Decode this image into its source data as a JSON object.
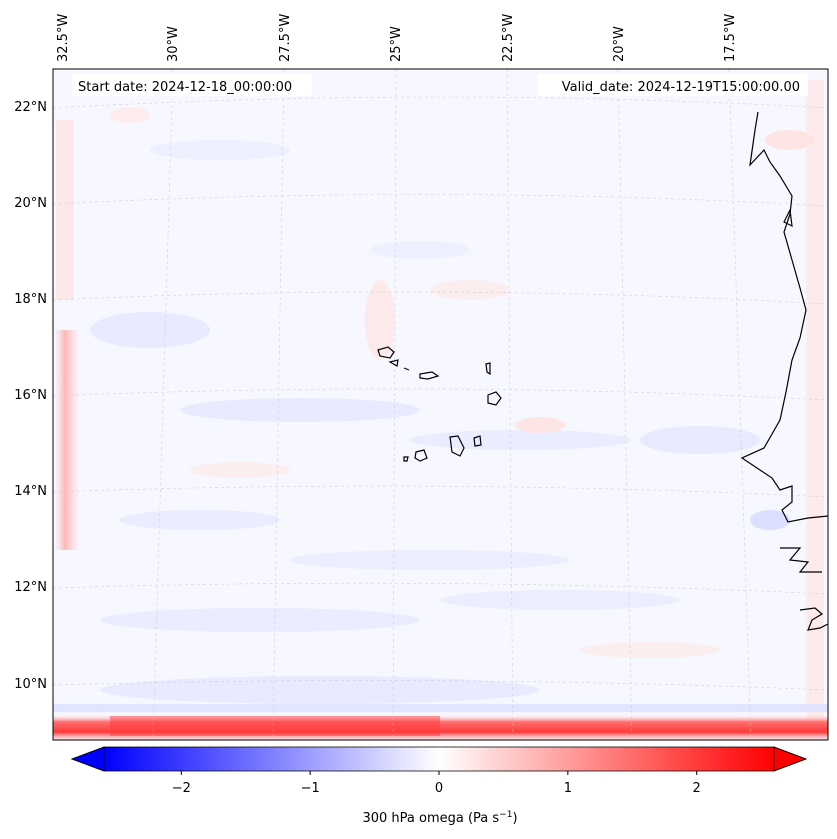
{
  "header": {
    "start_date": "Start date: 2024-12-18_00:00:00",
    "valid_date": "Valid_date: 2024-12-19T15:00:00.00"
  },
  "map": {
    "lon_labels": [
      "32.5°W",
      "30°W",
      "27.5°W",
      "25°W",
      "22.5°W",
      "20°W",
      "17.5°W"
    ],
    "lat_labels": [
      "22°N",
      "20°N",
      "18°N",
      "16°N",
      "14°N",
      "12°N",
      "10°N"
    ],
    "feature_names": [
      "cape-verde-islands",
      "west-africa-coastline"
    ]
  },
  "colorbar": {
    "label_prefix": "300 hPa omega (Pa s",
    "label_exponent": "−1",
    "label_suffix": ")",
    "ticks": [
      "−2",
      "−1",
      "0",
      "1",
      "2"
    ],
    "min": -2.6,
    "max": 2.6,
    "low_color": "#0000ff",
    "mid_color": "#ffffff",
    "high_color": "#ff0000"
  }
}
